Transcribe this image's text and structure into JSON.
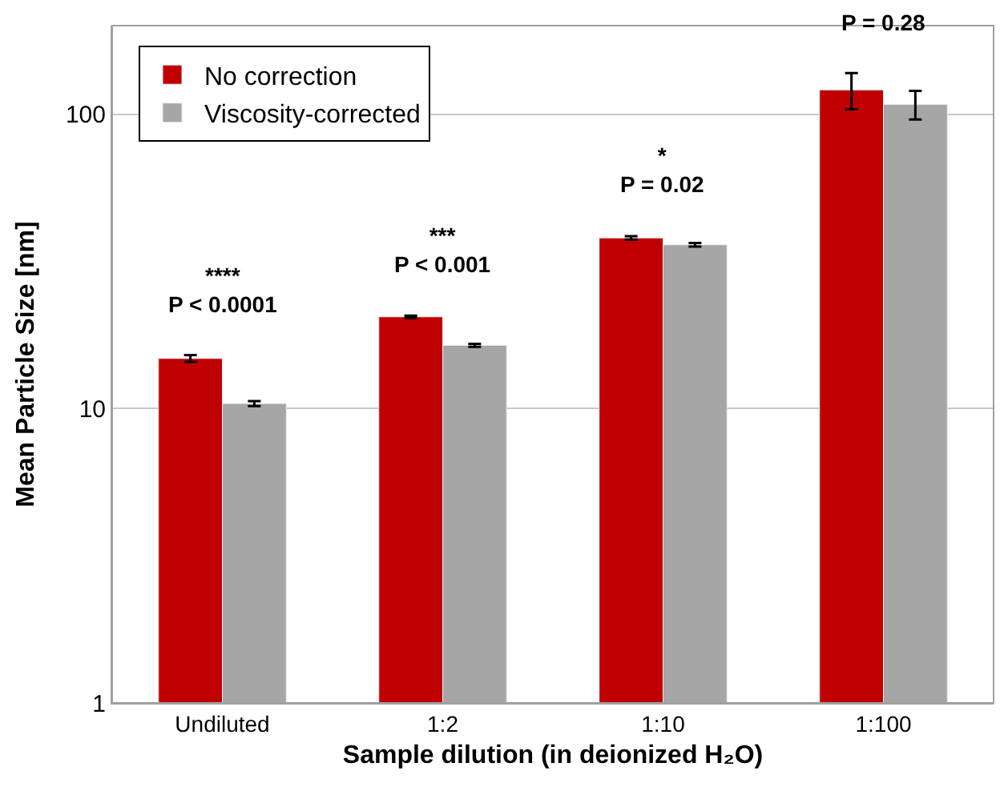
{
  "chart_data": {
    "type": "bar",
    "xlabel": "Sample dilution (in deionized H₂O)",
    "ylabel": "Mean Particle Size [nm]",
    "categories": [
      "Undiluted",
      "1:2",
      "1:10",
      "1:100"
    ],
    "series": [
      {
        "name": "No correction",
        "color": "#c00000",
        "values": [
          14.8,
          20.5,
          38,
          121
        ],
        "errors": [
          0.4,
          0.2,
          0.5,
          17
        ]
      },
      {
        "name": "Viscosity-corrected",
        "color": "#a6a6a6",
        "values": [
          10.4,
          16.4,
          36,
          108
        ],
        "errors": [
          0.2,
          0.2,
          0.5,
          12
        ]
      }
    ],
    "log": true,
    "ylim": [
      1,
      200
    ],
    "yticks": [
      1,
      10,
      100
    ],
    "grid": "y",
    "legend": "top left",
    "annotations": [
      "****\nP < 0.0001",
      "***\nP < 0.001",
      "*\nP = 0.02",
      "P = 0.28"
    ]
  }
}
